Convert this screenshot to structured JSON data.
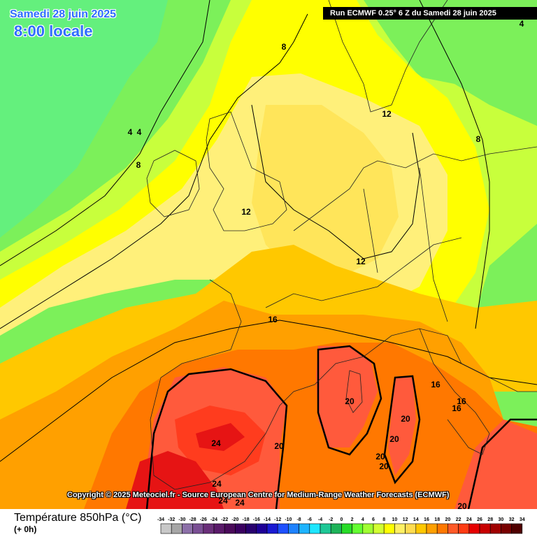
{
  "header": {
    "date": "Samedi 28 juin 2025",
    "time": "8:00 locale",
    "run": "Run ECMWF 0.25° 6 Z du Samedi 28 juin 2025"
  },
  "copyright": "Copyright © 2025 Meteociel.fr - Source European Centre for Medium-Range Weather Forecasts (ECMWF)",
  "legend": {
    "title": "Température 850hPa (°C)",
    "subtitle": "(+ 0h)",
    "ticks": [
      "-34",
      "-32",
      "-30",
      "-28",
      "-26",
      "-24",
      "-22",
      "-20",
      "-18",
      "-16",
      "-14",
      "-12",
      "-10",
      "-8",
      "-6",
      "-4",
      "-2",
      "0",
      "2",
      "4",
      "6",
      "8",
      "10",
      "12",
      "14",
      "16",
      "18",
      "20",
      "22",
      "24",
      "26",
      "28",
      "30",
      "32",
      "34"
    ],
    "colors": [
      "#c8c8c8",
      "#a6a6a6",
      "#8c70a8",
      "#7a4f94",
      "#6a2f7a",
      "#5a1a6a",
      "#4a0a5a",
      "#3a0060",
      "#28006e",
      "#1e0096",
      "#1a1ad2",
      "#1e50ff",
      "#1e82ff",
      "#1eb4ff",
      "#1ee6ff",
      "#1ec896",
      "#1eb45a",
      "#28dc28",
      "#64ff32",
      "#a0ff32",
      "#d2ff32",
      "#ffff00",
      "#fff064",
      "#ffdc50",
      "#ffc800",
      "#ffa000",
      "#ff7800",
      "#ff5a28",
      "#ff3c14",
      "#e60000",
      "#c80000",
      "#a00000",
      "#780000",
      "#500000"
    ]
  },
  "map": {
    "colors": {
      "c4": "#64f07d",
      "c6": "#7cf05a",
      "c8": "#c8ff3c",
      "c10": "#ffff00",
      "c12": "#fff07a",
      "c13": "#ffe55a",
      "c14": "#ffc800",
      "c16": "#ffa000",
      "c18": "#ff7800",
      "c20": "#ff5a3c",
      "c22": "#ff3c1e",
      "c24": "#e61414"
    },
    "labels": [
      {
        "text": "4"
      },
      {
        "text": "4"
      },
      {
        "text": "4"
      },
      {
        "text": "8"
      },
      {
        "text": "8"
      },
      {
        "text": "8"
      },
      {
        "text": "12"
      },
      {
        "text": "12"
      },
      {
        "text": "12"
      },
      {
        "text": "16"
      },
      {
        "text": "16"
      },
      {
        "text": "16"
      },
      {
        "text": "16"
      },
      {
        "text": "20"
      },
      {
        "text": "20"
      },
      {
        "text": "20"
      },
      {
        "text": "20"
      },
      {
        "text": "20"
      },
      {
        "text": "20"
      },
      {
        "text": "20"
      },
      {
        "text": "24"
      },
      {
        "text": "24"
      },
      {
        "text": "24"
      },
      {
        "text": "24"
      }
    ]
  }
}
